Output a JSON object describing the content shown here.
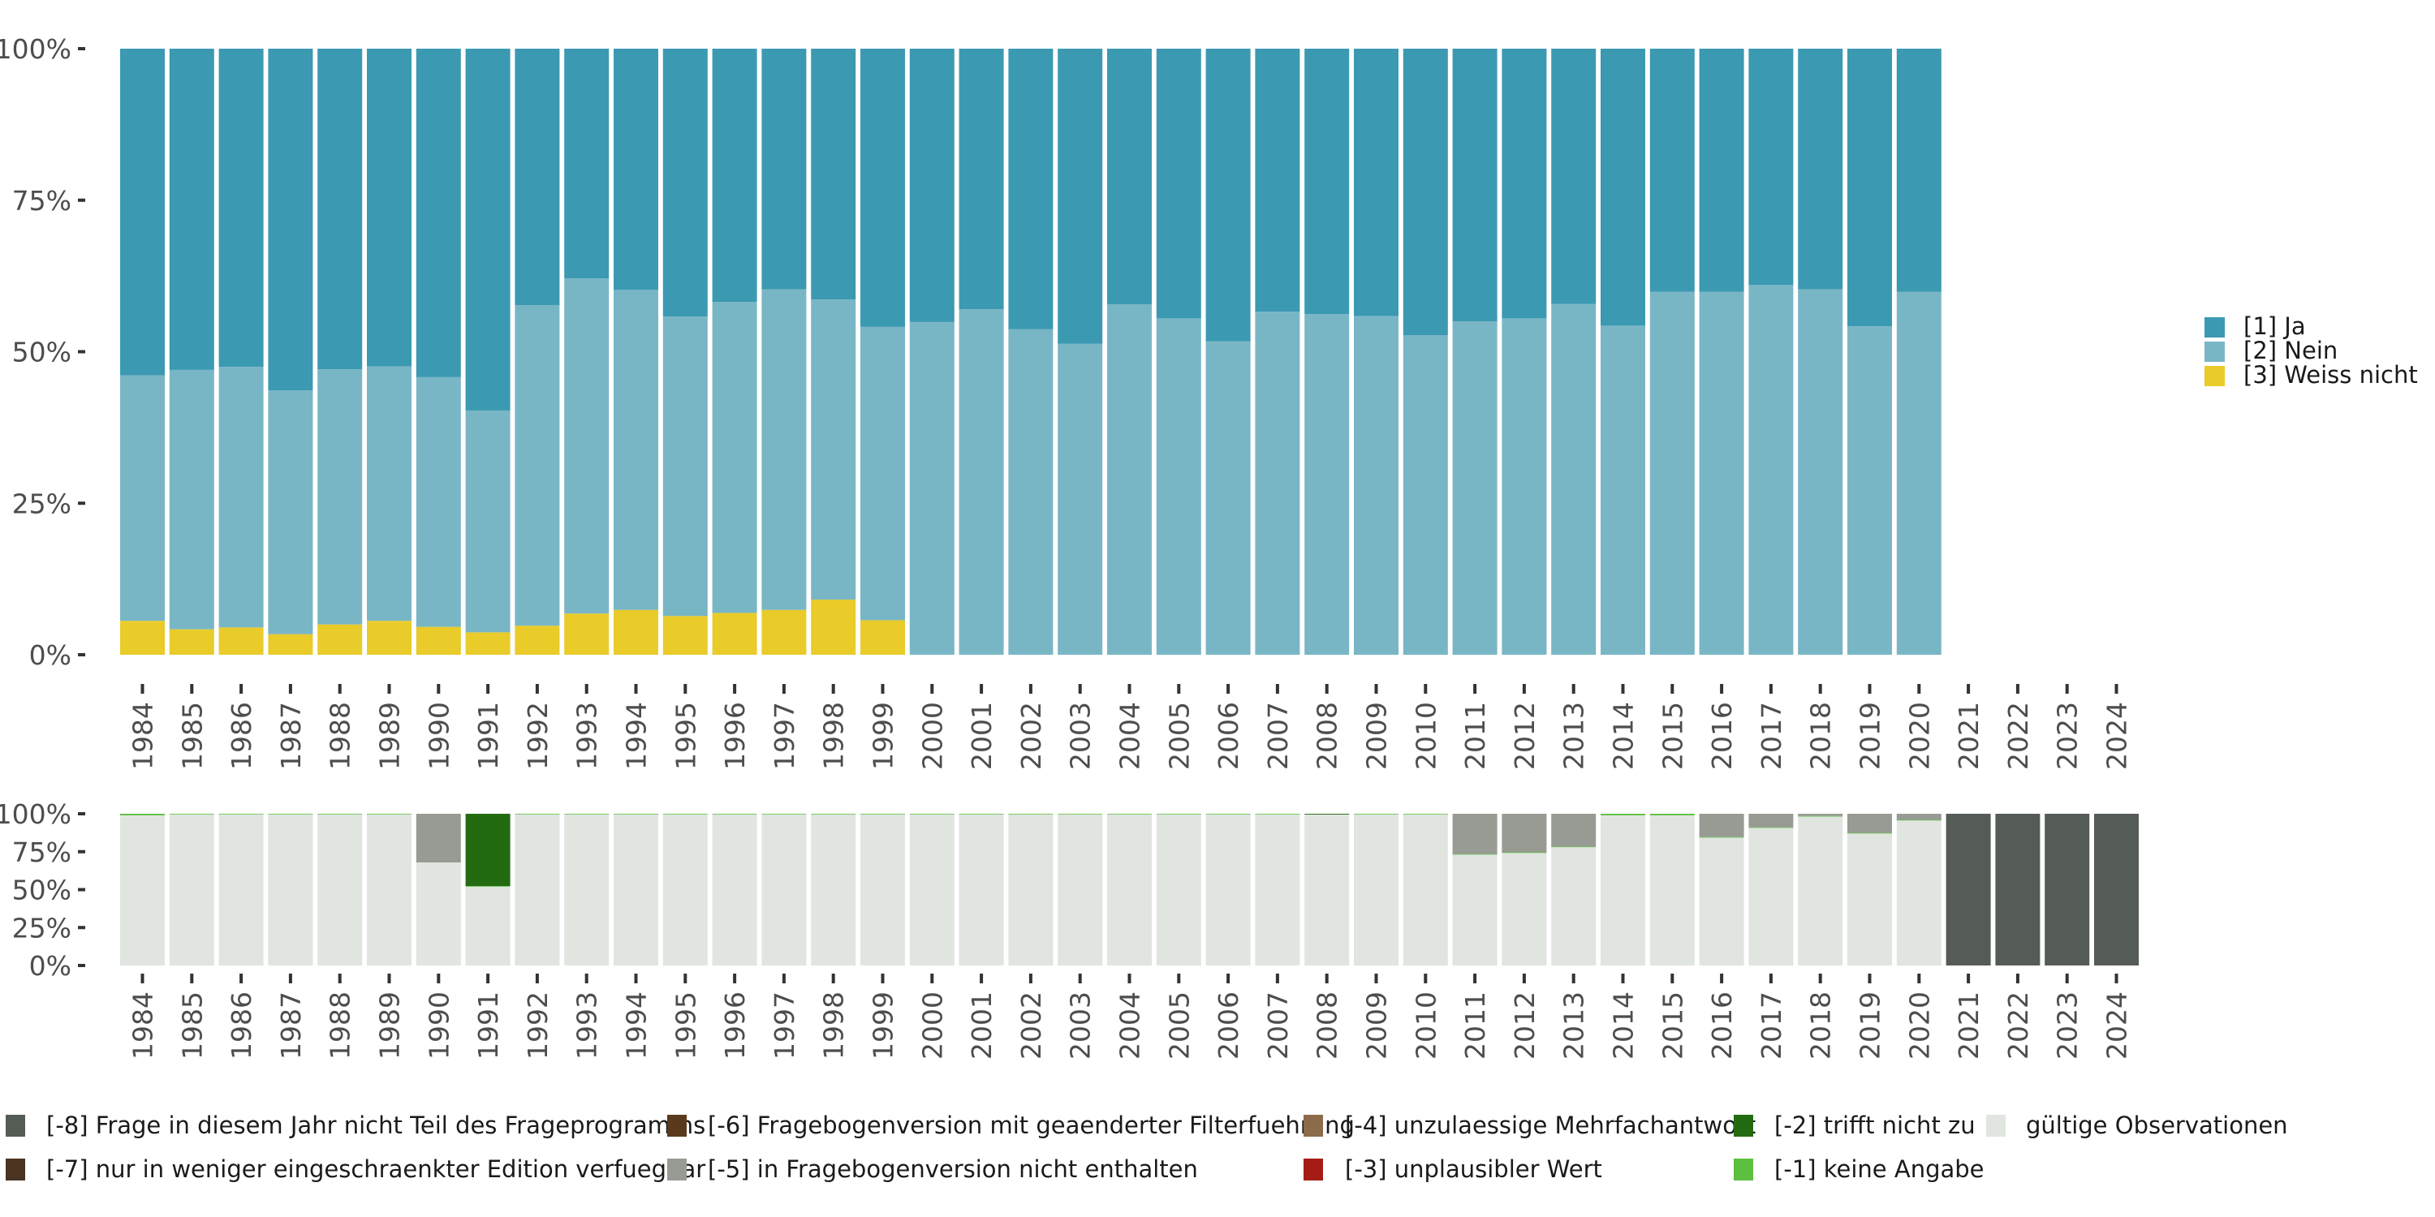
{
  "chart_data": [
    {
      "type": "bar",
      "stacked": true,
      "normalized": true,
      "title": "",
      "xlabel": "",
      "ylabel": "",
      "ylim": [
        0,
        100
      ],
      "yticks": [
        "0%",
        "25%",
        "50%",
        "75%",
        "100%"
      ],
      "categories": [
        "1984",
        "1985",
        "1986",
        "1987",
        "1988",
        "1989",
        "1990",
        "1991",
        "1992",
        "1993",
        "1994",
        "1995",
        "1996",
        "1997",
        "1998",
        "1999",
        "2000",
        "2001",
        "2002",
        "2003",
        "2004",
        "2005",
        "2006",
        "2007",
        "2008",
        "2009",
        "2010",
        "2011",
        "2012",
        "2013",
        "2014",
        "2015",
        "2016",
        "2017",
        "2018",
        "2019",
        "2020",
        "2021",
        "2022",
        "2023",
        "2024"
      ],
      "legend_position": "right",
      "series": [
        {
          "name": "[3] Weiss nicht",
          "color": "#E9CB2A",
          "values": [
            5.6,
            4.2,
            4.5,
            3.4,
            5.0,
            5.6,
            4.6,
            3.7,
            4.8,
            6.8,
            7.4,
            6.4,
            6.9,
            7.4,
            9.1,
            5.7,
            0,
            0,
            0,
            0,
            0,
            0,
            0,
            0,
            0,
            0,
            0,
            0,
            0,
            0,
            0,
            0,
            0,
            0,
            0,
            0,
            0,
            null,
            null,
            null,
            null
          ]
        },
        {
          "name": "[2] Nein",
          "color": "#79B6C5",
          "values": [
            40.5,
            42.8,
            43.0,
            40.2,
            42.1,
            42.0,
            41.2,
            36.6,
            52.9,
            55.3,
            52.8,
            49.4,
            51.3,
            52.9,
            49.5,
            48.4,
            54.9,
            57.0,
            53.7,
            51.3,
            57.8,
            55.5,
            51.7,
            56.6,
            56.2,
            55.9,
            52.7,
            55.0,
            55.5,
            57.9,
            54.3,
            59.9,
            59.9,
            61.0,
            60.3,
            54.2,
            59.9,
            null,
            null,
            null,
            null
          ]
        },
        {
          "name": "[1] Ja",
          "color": "#3C99B2",
          "values": [
            53.9,
            53.0,
            52.5,
            56.4,
            52.9,
            52.4,
            54.2,
            59.7,
            42.3,
            37.9,
            39.8,
            44.2,
            41.8,
            39.7,
            41.4,
            45.9,
            45.1,
            43.0,
            46.3,
            48.7,
            42.2,
            44.5,
            48.3,
            43.4,
            43.8,
            44.1,
            47.3,
            45.0,
            44.5,
            42.1,
            45.7,
            40.1,
            40.1,
            39.0,
            39.7,
            45.8,
            40.1,
            null,
            null,
            null,
            null
          ]
        }
      ]
    },
    {
      "type": "bar",
      "stacked": true,
      "normalized": true,
      "title": "",
      "xlabel": "",
      "ylabel": "",
      "ylim": [
        0,
        100
      ],
      "yticks": [
        "0%",
        "25%",
        "50%",
        "75%",
        "100%"
      ],
      "categories": [
        "1984",
        "1985",
        "1986",
        "1987",
        "1988",
        "1989",
        "1990",
        "1991",
        "1992",
        "1993",
        "1994",
        "1995",
        "1996",
        "1997",
        "1998",
        "1999",
        "2000",
        "2001",
        "2002",
        "2003",
        "2004",
        "2005",
        "2006",
        "2007",
        "2008",
        "2009",
        "2010",
        "2011",
        "2012",
        "2013",
        "2014",
        "2015",
        "2016",
        "2017",
        "2018",
        "2019",
        "2020",
        "2021",
        "2022",
        "2023",
        "2024"
      ],
      "legend_position": "bottom",
      "series": [
        {
          "name": "gültige Observationen",
          "color": "#E0E5E0",
          "values": [
            99.0,
            99.6,
            99.6,
            99.6,
            99.6,
            99.6,
            67.9,
            52.0,
            99.6,
            99.6,
            99.6,
            99.6,
            99.6,
            99.6,
            99.6,
            99.6,
            99.6,
            99.6,
            99.6,
            99.6,
            99.6,
            99.6,
            99.6,
            99.6,
            99.5,
            99.6,
            99.6,
            73.1,
            74.2,
            78.0,
            99.0,
            99.0,
            84.3,
            90.7,
            98.2,
            87.0,
            95.6,
            0,
            0,
            0,
            0
          ]
        },
        {
          "name": "[-1] keine Angabe",
          "color": "#5BBF3F",
          "values": [
            1.0,
            0.4,
            0.4,
            0.4,
            0.4,
            0.4,
            0,
            0.4,
            0.4,
            0.4,
            0.4,
            0.4,
            0.4,
            0.4,
            0.4,
            0.4,
            0.4,
            0.4,
            0.4,
            0.4,
            0.4,
            0.4,
            0.4,
            0.4,
            0,
            0.4,
            0.4,
            0.4,
            0.4,
            0.4,
            1.0,
            1.0,
            0.4,
            0.4,
            0.4,
            0.4,
            0.4,
            0,
            0,
            0,
            0
          ]
        },
        {
          "name": "[-2] trifft nicht zu",
          "color": "#236B11",
          "values": [
            0,
            0,
            0,
            0,
            0,
            0,
            0,
            47.6,
            0,
            0,
            0,
            0,
            0,
            0,
            0,
            0,
            0,
            0,
            0,
            0,
            0,
            0,
            0,
            0,
            0.5,
            0,
            0,
            0,
            0,
            0,
            0,
            0,
            0,
            0,
            0,
            0,
            0,
            0,
            0,
            0,
            0
          ]
        },
        {
          "name": "[-3] unplausibler Wert",
          "color": "#A51C16",
          "values": [
            0,
            0,
            0,
            0,
            0,
            0,
            0,
            0,
            0,
            0,
            0,
            0,
            0,
            0,
            0,
            0,
            0,
            0,
            0,
            0,
            0,
            0,
            0,
            0,
            0,
            0,
            0,
            0,
            0,
            0,
            0,
            0,
            0,
            0,
            0,
            0,
            0,
            0,
            0,
            0,
            0
          ]
        },
        {
          "name": "[-4] unzulaessige Mehrfachantwort",
          "color": "#8C6B4A",
          "values": [
            0,
            0,
            0,
            0,
            0,
            0,
            0,
            0,
            0,
            0,
            0,
            0,
            0,
            0,
            0,
            0,
            0,
            0,
            0,
            0,
            0,
            0,
            0,
            0,
            0,
            0,
            0,
            0,
            0,
            0,
            0,
            0,
            0,
            0,
            0,
            0,
            0,
            0,
            0,
            0,
            0
          ]
        },
        {
          "name": "[-5] in Fragebogenversion nicht enthalten",
          "color": "#989B93",
          "values": [
            0,
            0,
            0,
            0,
            0,
            0,
            32.1,
            0,
            0,
            0,
            0,
            0,
            0,
            0,
            0,
            0,
            0,
            0,
            0,
            0,
            0,
            0,
            0,
            0,
            0,
            0,
            0,
            26.5,
            25.4,
            21.6,
            0,
            0,
            15.3,
            8.9,
            1.4,
            12.6,
            4.0,
            0,
            0,
            0,
            0
          ]
        },
        {
          "name": "[-6] Fragebogenversion mit geaenderter Filterfuehrung",
          "color": "#5A3A1C",
          "values": [
            0,
            0,
            0,
            0,
            0,
            0,
            0,
            0,
            0,
            0,
            0,
            0,
            0,
            0,
            0,
            0,
            0,
            0,
            0,
            0,
            0,
            0,
            0,
            0,
            0,
            0,
            0,
            0,
            0,
            0,
            0,
            0,
            0,
            0,
            0,
            0,
            0,
            0,
            0,
            0,
            0
          ]
        },
        {
          "name": "[-7] nur in weniger eingeschraenkter Edition verfuegbar",
          "color": "#4A3320",
          "values": [
            0,
            0,
            0,
            0,
            0,
            0,
            0,
            0,
            0,
            0,
            0,
            0,
            0,
            0,
            0,
            0,
            0,
            0,
            0,
            0,
            0,
            0,
            0,
            0,
            0,
            0,
            0,
            0,
            0,
            0,
            0,
            0,
            0,
            0,
            0,
            0,
            0,
            0,
            0,
            0,
            0
          ]
        },
        {
          "name": "[-8] Frage in diesem Jahr nicht Teil des Frageprogramms",
          "color": "#555C55",
          "values": [
            0,
            0,
            0,
            0,
            0,
            0,
            0,
            0,
            0,
            0,
            0,
            0,
            0,
            0,
            0,
            0,
            0,
            0,
            0,
            0,
            0,
            0,
            0,
            0,
            0,
            0,
            0,
            0,
            0,
            0,
            0,
            0,
            0,
            0,
            0,
            0,
            0,
            100,
            100,
            100,
            100
          ]
        }
      ]
    }
  ],
  "top_legend": [
    {
      "label": "[1] Ja",
      "color": "#3C99B2"
    },
    {
      "label": "[2] Nein",
      "color": "#79B6C5"
    },
    {
      "label": "[3] Weiss nicht",
      "color": "#E9CB2A"
    }
  ],
  "bottom_legend": [
    {
      "label": "[-8] Frage in diesem Jahr nicht Teil des Frageprogramms",
      "color": "#555C55"
    },
    {
      "label": "[-7] nur in weniger eingeschraenkter Edition verfuegbar",
      "color": "#4A3320"
    },
    {
      "label": "[-6] Fragebogenversion mit geaenderter Filterfuehrung",
      "color": "#5A3A1C"
    },
    {
      "label": "[-5] in Fragebogenversion nicht enthalten",
      "color": "#989B93"
    },
    {
      "label": "[-4] unzulaessige Mehrfachantwort",
      "color": "#8C6B4A"
    },
    {
      "label": "[-3] unplausibler Wert",
      "color": "#A51C16"
    },
    {
      "label": "[-2] trifft nicht zu",
      "color": "#236B11"
    },
    {
      "label": "[-1] keine Angabe",
      "color": "#5BBF3F"
    },
    {
      "label": "gültige Observationen",
      "color": "#E0E5E0"
    }
  ]
}
